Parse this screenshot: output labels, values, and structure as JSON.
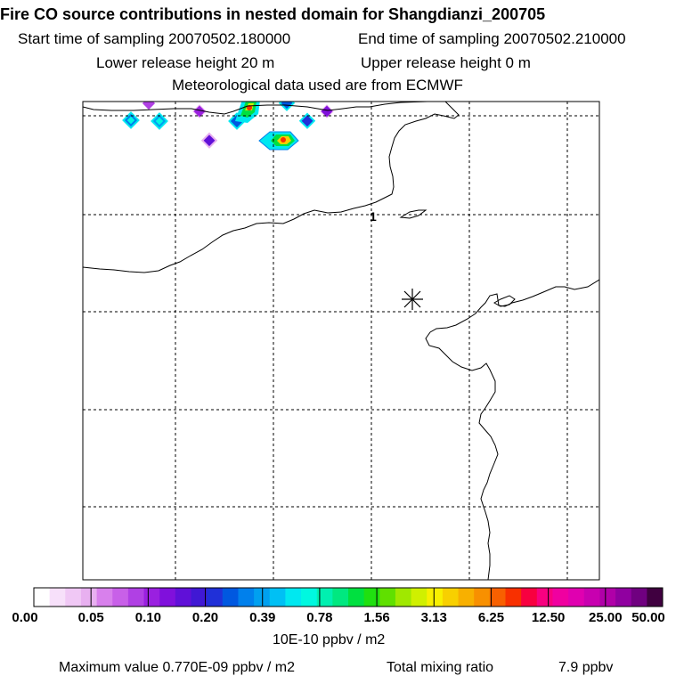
{
  "header": {
    "title": "Fire CO source contributions in nested domain for Shangdianzi_200705",
    "start_label": "Start time of sampling 20070502.180000",
    "end_label": "End time of sampling 20070502.210000",
    "lower_release": "Lower release height   20 m",
    "upper_release": "Upper release height    0 m",
    "met_data": "Meteorological data used are from ECMWF"
  },
  "map": {
    "station_marker": "asterisk-icon",
    "label_1": "1"
  },
  "colorbar": {
    "tick_labels": [
      "0.00",
      "0.05",
      "0.10",
      "0.20",
      "0.39",
      "0.78",
      "1.56",
      "3.13",
      "6.25",
      "12.50",
      "25.00",
      "50.00"
    ],
    "unit": "10E-10 ppbv / m2",
    "colors": [
      "#ffffff",
      "#f7e0fa",
      "#f0c8f5",
      "#e8b0f0",
      "#d880ec",
      "#c860e8",
      "#b040e4",
      "#9a20e0",
      "#8010dc",
      "#6010d8",
      "#4018d4",
      "#2030d8",
      "#0058e0",
      "#0080ec",
      "#00a0f0",
      "#00c0f4",
      "#00e8f0",
      "#00f8e0",
      "#00f0b0",
      "#00e880",
      "#00e040",
      "#20e010",
      "#60e000",
      "#a0e800",
      "#d0f000",
      "#f8f000",
      "#f8d000",
      "#f8b000",
      "#f89000",
      "#f86000",
      "#f83000",
      "#f80040",
      "#f80080",
      "#f000a0",
      "#e000b0",
      "#c800b0",
      "#b000a8",
      "#9000a0",
      "#700080",
      "#400040"
    ]
  },
  "footer": {
    "max_value": "Maximum value  0.770E-09 ppbv / m2",
    "total_mixing": "Total mixing ratio",
    "total_value": "7.9 ppbv"
  },
  "chart_data": {
    "type": "heatmap",
    "title": "Fire CO source contributions in nested domain for Shangdianzi_200705",
    "colorbar_levels": [
      0.0,
      0.05,
      0.1,
      0.2,
      0.39,
      0.78,
      1.56,
      3.13,
      6.25,
      12.5,
      25.0,
      50.0
    ],
    "colorbar_unit": "10E-10 ppbv / m2",
    "max_value": "0.770E-09 ppbv / m2",
    "total_mixing_ratio_ppbv": 7.9,
    "cells": [
      {
        "col": 0,
        "row": 0,
        "level": 0.2
      },
      {
        "col": 1,
        "row": 0,
        "level": 0.39
      },
      {
        "col": 2,
        "row": -1,
        "level": 0.1
      },
      {
        "col": 3,
        "row": -1,
        "level": 0.1
      },
      {
        "col": 4,
        "row": 1,
        "level": 0.1
      },
      {
        "col": 5,
        "row": 0,
        "level": 0.39
      },
      {
        "col": 5,
        "row": -1,
        "level": 1.56
      },
      {
        "col": 6,
        "row": 1,
        "level": 1.56
      },
      {
        "col": 7,
        "row": -1,
        "level": 0.39
      },
      {
        "col": 8,
        "row": 0,
        "level": 0.39
      },
      {
        "col": 9,
        "row": -1,
        "level": 0.1
      }
    ]
  }
}
